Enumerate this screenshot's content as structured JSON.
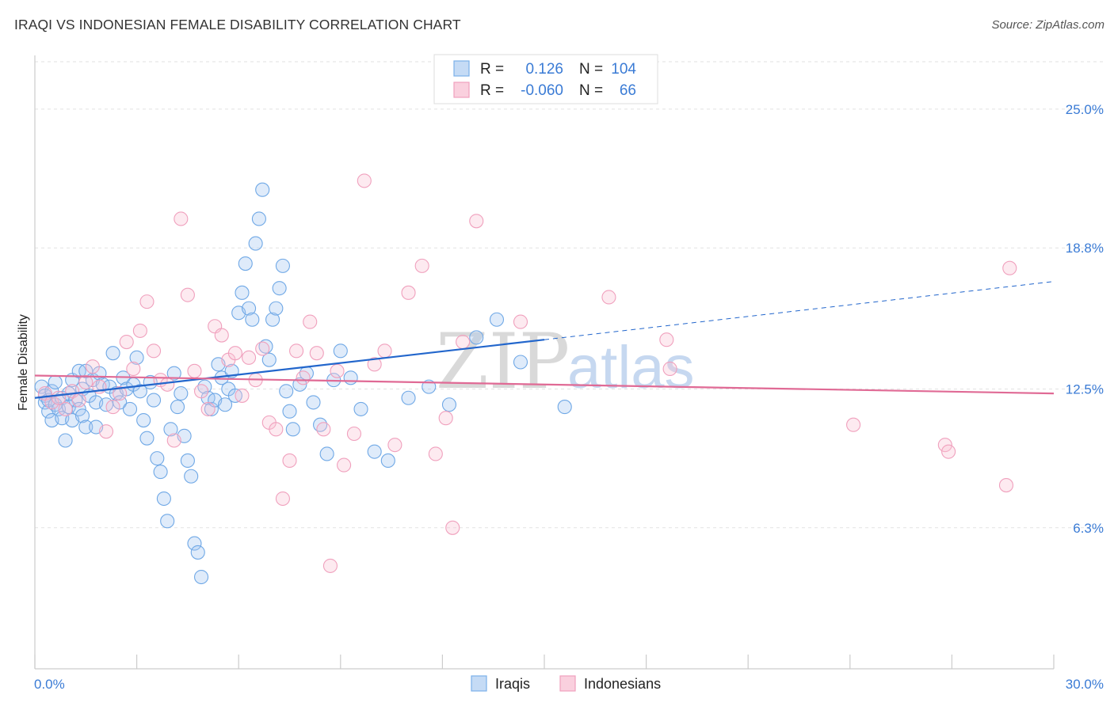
{
  "title": "IRAQI VS INDONESIAN FEMALE DISABILITY CORRELATION CHART",
  "source": "Source: ZipAtlas.com",
  "watermark": {
    "zip": "ZIP",
    "atlas": "atlas"
  },
  "legend": {
    "rows": [
      {
        "r_label": "R =",
        "r_value": "0.126",
        "n_label": "N =",
        "n_value": "104",
        "color": "#7bb0ea",
        "fill": "#c5dbf5"
      },
      {
        "r_label": "R =",
        "r_value": "-0.060",
        "n_label": "N =",
        "n_value": "66",
        "color": "#f0a0bd",
        "fill": "#fad0de"
      }
    ]
  },
  "chart_data": {
    "type": "scatter",
    "title": "IRAQI VS INDONESIAN FEMALE DISABILITY CORRELATION CHART",
    "xlabel": "",
    "ylabel": "Female Disability",
    "xlim": [
      0,
      30
    ],
    "ylim": [
      0,
      27.4
    ],
    "x_tick_labels": [
      "0.0%",
      "30.0%"
    ],
    "y_ticks": [
      {
        "value": 25.0,
        "label": "25.0%"
      },
      {
        "value": 18.8,
        "label": "18.8%"
      },
      {
        "value": 12.5,
        "label": "12.5%"
      },
      {
        "value": 6.3,
        "label": "6.3%"
      }
    ],
    "grid": "horizontal dashed",
    "legend_position": "bottom-center",
    "series": [
      {
        "name": "Iraqis",
        "stroke": "#6fa8e6",
        "fill": "rgba(163,199,240,0.35)",
        "trend": {
          "x0": 0,
          "y0": 12.1,
          "x1": 15,
          "y1": 14.7,
          "dashed_to_x": 30,
          "dashed_to_y": 17.3,
          "color": "#2266cc"
        },
        "points": [
          [
            0.2,
            12.6
          ],
          [
            0.3,
            12.2
          ],
          [
            0.3,
            11.9
          ],
          [
            0.4,
            11.5
          ],
          [
            0.4,
            12.0
          ],
          [
            0.5,
            12.4
          ],
          [
            0.5,
            11.1
          ],
          [
            0.6,
            11.8
          ],
          [
            0.6,
            12.8
          ],
          [
            0.7,
            11.6
          ],
          [
            0.8,
            12.1
          ],
          [
            0.8,
            11.2
          ],
          [
            0.9,
            10.2
          ],
          [
            1.0,
            12.3
          ],
          [
            1.0,
            11.7
          ],
          [
            1.1,
            12.9
          ],
          [
            1.1,
            11.1
          ],
          [
            1.2,
            12.0
          ],
          [
            1.3,
            13.3
          ],
          [
            1.3,
            11.6
          ],
          [
            1.4,
            12.5
          ],
          [
            1.4,
            11.3
          ],
          [
            1.5,
            13.3
          ],
          [
            1.5,
            10.8
          ],
          [
            1.6,
            12.2
          ],
          [
            1.7,
            12.9
          ],
          [
            1.8,
            11.9
          ],
          [
            1.8,
            10.8
          ],
          [
            1.9,
            13.2
          ],
          [
            2.0,
            12.7
          ],
          [
            2.1,
            11.8
          ],
          [
            2.2,
            12.6
          ],
          [
            2.3,
            14.1
          ],
          [
            2.4,
            12.3
          ],
          [
            2.5,
            11.9
          ],
          [
            2.6,
            13.0
          ],
          [
            2.7,
            12.5
          ],
          [
            2.8,
            11.6
          ],
          [
            2.9,
            12.7
          ],
          [
            3.0,
            13.9
          ],
          [
            3.1,
            12.4
          ],
          [
            3.2,
            11.1
          ],
          [
            3.3,
            10.3
          ],
          [
            3.4,
            12.8
          ],
          [
            3.5,
            12.0
          ],
          [
            3.6,
            9.4
          ],
          [
            3.7,
            8.8
          ],
          [
            3.8,
            7.6
          ],
          [
            3.9,
            6.6
          ],
          [
            4.0,
            10.7
          ],
          [
            4.1,
            13.2
          ],
          [
            4.2,
            11.7
          ],
          [
            4.3,
            12.3
          ],
          [
            4.4,
            10.4
          ],
          [
            4.5,
            9.3
          ],
          [
            4.6,
            8.6
          ],
          [
            4.7,
            5.6
          ],
          [
            4.8,
            5.2
          ],
          [
            4.9,
            4.1
          ],
          [
            5.0,
            12.6
          ],
          [
            5.1,
            12.1
          ],
          [
            5.2,
            11.6
          ],
          [
            5.3,
            12.0
          ],
          [
            5.4,
            13.6
          ],
          [
            5.5,
            13.0
          ],
          [
            5.6,
            11.8
          ],
          [
            5.7,
            12.5
          ],
          [
            5.8,
            13.3
          ],
          [
            5.9,
            12.2
          ],
          [
            6.0,
            15.9
          ],
          [
            6.1,
            16.8
          ],
          [
            6.2,
            18.1
          ],
          [
            6.3,
            16.1
          ],
          [
            6.4,
            15.6
          ],
          [
            6.5,
            19.0
          ],
          [
            6.6,
            20.1
          ],
          [
            6.7,
            21.4
          ],
          [
            6.8,
            14.4
          ],
          [
            6.9,
            13.8
          ],
          [
            7.0,
            15.6
          ],
          [
            7.1,
            16.1
          ],
          [
            7.2,
            17.0
          ],
          [
            7.3,
            18.0
          ],
          [
            7.4,
            12.4
          ],
          [
            7.5,
            11.5
          ],
          [
            7.6,
            10.7
          ],
          [
            7.8,
            12.7
          ],
          [
            8.0,
            13.2
          ],
          [
            8.2,
            11.9
          ],
          [
            8.4,
            10.9
          ],
          [
            8.6,
            9.6
          ],
          [
            8.8,
            12.9
          ],
          [
            9.0,
            14.2
          ],
          [
            9.3,
            13.0
          ],
          [
            9.6,
            11.6
          ],
          [
            10.0,
            9.7
          ],
          [
            10.4,
            9.3
          ],
          [
            11.0,
            12.1
          ],
          [
            11.6,
            12.6
          ],
          [
            12.2,
            11.8
          ],
          [
            13.0,
            14.8
          ],
          [
            13.6,
            15.6
          ],
          [
            14.3,
            13.7
          ],
          [
            15.6,
            11.7
          ]
        ]
      },
      {
        "name": "Indonesians",
        "stroke": "#f0a0bd",
        "fill": "rgba(248,194,213,0.35)",
        "trend": {
          "x0": 0,
          "y0": 13.1,
          "x1": 30,
          "y1": 12.3,
          "color": "#e06a95"
        },
        "points": [
          [
            0.3,
            12.3
          ],
          [
            0.5,
            11.9
          ],
          [
            0.7,
            12.1
          ],
          [
            0.9,
            11.6
          ],
          [
            1.1,
            12.4
          ],
          [
            1.3,
            12.0
          ],
          [
            1.5,
            12.8
          ],
          [
            1.7,
            13.5
          ],
          [
            1.9,
            12.6
          ],
          [
            2.1,
            10.6
          ],
          [
            2.3,
            11.7
          ],
          [
            2.5,
            12.3
          ],
          [
            2.7,
            14.6
          ],
          [
            2.9,
            13.4
          ],
          [
            3.1,
            15.1
          ],
          [
            3.3,
            16.4
          ],
          [
            3.5,
            14.2
          ],
          [
            3.7,
            12.9
          ],
          [
            3.9,
            12.7
          ],
          [
            4.1,
            10.2
          ],
          [
            4.3,
            20.1
          ],
          [
            4.5,
            16.7
          ],
          [
            4.7,
            13.3
          ],
          [
            4.9,
            12.4
          ],
          [
            5.1,
            11.6
          ],
          [
            5.3,
            15.3
          ],
          [
            5.5,
            14.9
          ],
          [
            5.7,
            13.8
          ],
          [
            5.9,
            14.1
          ],
          [
            6.1,
            12.2
          ],
          [
            6.3,
            13.9
          ],
          [
            6.5,
            12.9
          ],
          [
            6.7,
            14.3
          ],
          [
            6.9,
            11.0
          ],
          [
            7.1,
            10.7
          ],
          [
            7.3,
            7.6
          ],
          [
            7.5,
            9.3
          ],
          [
            7.7,
            14.2
          ],
          [
            7.9,
            13.0
          ],
          [
            8.1,
            15.5
          ],
          [
            8.3,
            14.1
          ],
          [
            8.5,
            10.7
          ],
          [
            8.7,
            4.6
          ],
          [
            8.9,
            13.3
          ],
          [
            9.1,
            9.1
          ],
          [
            9.4,
            10.5
          ],
          [
            9.7,
            21.8
          ],
          [
            10.0,
            13.6
          ],
          [
            10.3,
            14.2
          ],
          [
            10.6,
            10.0
          ],
          [
            11.0,
            16.8
          ],
          [
            11.4,
            18.0
          ],
          [
            11.8,
            9.6
          ],
          [
            12.1,
            11.2
          ],
          [
            12.3,
            6.3
          ],
          [
            12.6,
            14.6
          ],
          [
            13.0,
            20.0
          ],
          [
            14.3,
            15.5
          ],
          [
            16.9,
            16.6
          ],
          [
            18.6,
            14.7
          ],
          [
            18.7,
            13.4
          ],
          [
            24.1,
            10.9
          ],
          [
            26.8,
            10.0
          ],
          [
            26.9,
            9.7
          ],
          [
            28.6,
            8.2
          ],
          [
            28.7,
            17.9
          ]
        ]
      }
    ]
  },
  "bottom_legend": {
    "series1": "Iraqis",
    "series2": "Indonesians"
  }
}
